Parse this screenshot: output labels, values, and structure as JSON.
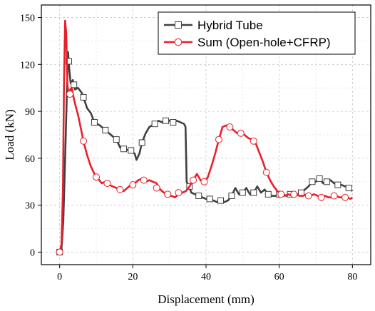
{
  "chart_data": {
    "type": "line",
    "title": "",
    "xlabel": "Displacement (mm)",
    "ylabel": "Load (kN)",
    "xlim": [
      -5,
      85
    ],
    "ylim": [
      -8,
      158
    ],
    "xticks": [
      0,
      20,
      40,
      60,
      80
    ],
    "yticks": [
      0,
      30,
      60,
      90,
      120,
      150
    ],
    "grid": true,
    "legend_position": "top-right",
    "series": [
      {
        "name": "Hybrid Tube",
        "color": "#404040",
        "marker": "square",
        "points": [
          [
            0,
            0
          ],
          [
            0.5,
            2
          ],
          [
            1.0,
            20
          ],
          [
            1.5,
            60
          ],
          [
            1.9,
            95
          ],
          [
            2.3,
            128
          ],
          [
            2.6,
            118
          ],
          [
            3.0,
            108
          ],
          [
            3.6,
            110
          ],
          [
            4.2,
            104
          ],
          [
            5.0,
            105
          ],
          [
            6,
            102
          ],
          [
            6.5,
            99
          ],
          [
            7.5,
            92
          ],
          [
            8.5,
            89
          ],
          [
            9.5,
            83
          ],
          [
            11,
            81
          ],
          [
            12.5,
            78
          ],
          [
            14,
            75
          ],
          [
            15.5,
            72
          ],
          [
            16.5,
            67
          ],
          [
            17.5,
            66
          ],
          [
            19,
            65
          ],
          [
            20.5,
            63
          ],
          [
            21,
            59
          ],
          [
            21.8,
            63
          ],
          [
            22.5,
            70
          ],
          [
            23.5,
            76
          ],
          [
            24.5,
            80
          ],
          [
            26,
            82
          ],
          [
            27,
            84
          ],
          [
            28,
            83
          ],
          [
            29,
            85
          ],
          [
            30,
            84
          ],
          [
            31,
            83
          ],
          [
            32,
            84
          ],
          [
            33,
            83
          ],
          [
            34,
            82
          ],
          [
            34.4,
            80
          ],
          [
            34.7,
            45
          ],
          [
            35.3,
            42
          ],
          [
            36,
            38
          ],
          [
            37,
            37
          ],
          [
            38,
            36
          ],
          [
            39,
            35
          ],
          [
            40,
            34
          ],
          [
            41,
            34
          ],
          [
            42,
            33
          ],
          [
            43,
            32
          ],
          [
            44,
            33
          ],
          [
            45,
            32
          ],
          [
            46,
            33
          ],
          [
            47,
            36
          ],
          [
            48,
            41
          ],
          [
            49,
            37
          ],
          [
            50,
            38
          ],
          [
            51,
            41
          ],
          [
            52,
            37
          ],
          [
            53,
            38
          ],
          [
            54,
            42
          ],
          [
            55,
            38
          ],
          [
            56,
            40
          ],
          [
            57,
            37
          ],
          [
            58,
            36
          ],
          [
            59,
            36
          ],
          [
            60,
            37
          ],
          [
            61,
            37
          ],
          [
            62,
            36
          ],
          [
            63,
            37
          ],
          [
            64,
            36
          ],
          [
            65,
            37
          ],
          [
            66,
            38
          ],
          [
            67,
            40
          ],
          [
            68,
            42
          ],
          [
            69,
            45
          ],
          [
            70,
            45
          ],
          [
            71,
            47
          ],
          [
            72,
            44
          ],
          [
            73,
            45
          ],
          [
            74,
            46
          ],
          [
            75,
            44
          ],
          [
            76,
            43
          ],
          [
            77,
            43
          ],
          [
            78,
            42
          ],
          [
            79,
            41
          ],
          [
            80,
            39
          ]
        ],
        "markers": [
          [
            0,
            0
          ],
          [
            2.5,
            122
          ],
          [
            3.9,
            107
          ],
          [
            6.5,
            99
          ],
          [
            9.5,
            83
          ],
          [
            12.5,
            78
          ],
          [
            15.5,
            72
          ],
          [
            17.5,
            66
          ],
          [
            19.5,
            65
          ],
          [
            22.5,
            70
          ],
          [
            26,
            82
          ],
          [
            29,
            84
          ],
          [
            31,
            83
          ],
          [
            35.5,
            42
          ],
          [
            38,
            36
          ],
          [
            41,
            34
          ],
          [
            44,
            33
          ],
          [
            47,
            36
          ],
          [
            50,
            38
          ],
          [
            53,
            38
          ],
          [
            57,
            37
          ],
          [
            60,
            37
          ],
          [
            63,
            37
          ],
          [
            66,
            38
          ],
          [
            69,
            45
          ],
          [
            71,
            47
          ],
          [
            73,
            45
          ],
          [
            76,
            43
          ],
          [
            79,
            41
          ]
        ]
      },
      {
        "name": "Sum (Open-hole+CFRP)",
        "color": "#e8202a",
        "marker": "circle",
        "points": [
          [
            0,
            0
          ],
          [
            0.5,
            5
          ],
          [
            0.9,
            40
          ],
          [
            1.2,
            110
          ],
          [
            1.5,
            148
          ],
          [
            1.8,
            140
          ],
          [
            2.1,
            108
          ],
          [
            2.5,
            100
          ],
          [
            2.9,
            104
          ],
          [
            3.3,
            105
          ],
          [
            3.7,
            100
          ],
          [
            4.3,
            94
          ],
          [
            5,
            88
          ],
          [
            5.8,
            79
          ],
          [
            6.5,
            71
          ],
          [
            7.5,
            62
          ],
          [
            8.5,
            55
          ],
          [
            9.5,
            50
          ],
          [
            10.5,
            47
          ],
          [
            11.5,
            44
          ],
          [
            12.5,
            45
          ],
          [
            13.5,
            43
          ],
          [
            14.5,
            42
          ],
          [
            15.5,
            41
          ],
          [
            16.5,
            40
          ],
          [
            17.5,
            39
          ],
          [
            18.5,
            41
          ],
          [
            19.5,
            43
          ],
          [
            20.5,
            44
          ],
          [
            21.5,
            46
          ],
          [
            22.5,
            47
          ],
          [
            23.5,
            45
          ],
          [
            24.5,
            46
          ],
          [
            25.5,
            45
          ],
          [
            26.5,
            44
          ],
          [
            27.5,
            40
          ],
          [
            28.5,
            38
          ],
          [
            29.5,
            37
          ],
          [
            30.5,
            36
          ],
          [
            31.5,
            35
          ],
          [
            32.5,
            37
          ],
          [
            33.5,
            38
          ],
          [
            34.5,
            39
          ],
          [
            35.5,
            42
          ],
          [
            36.5,
            46
          ],
          [
            37.5,
            50
          ],
          [
            38.5,
            46
          ],
          [
            39.5,
            44
          ],
          [
            40.5,
            48
          ],
          [
            41.5,
            55
          ],
          [
            42.5,
            63
          ],
          [
            43.5,
            72
          ],
          [
            44.5,
            80
          ],
          [
            45.5,
            81
          ],
          [
            46.5,
            80
          ],
          [
            47.5,
            78
          ],
          [
            48.5,
            76
          ],
          [
            49.5,
            77
          ],
          [
            50.5,
            75
          ],
          [
            51.5,
            73
          ],
          [
            52.5,
            72
          ],
          [
            53.5,
            70
          ],
          [
            54.5,
            64
          ],
          [
            55.5,
            58
          ],
          [
            56.5,
            51
          ],
          [
            57.5,
            46
          ],
          [
            58.5,
            42
          ],
          [
            59.5,
            39
          ],
          [
            60.5,
            37
          ],
          [
            61.5,
            36
          ],
          [
            62.5,
            37
          ],
          [
            63.5,
            36
          ],
          [
            64.5,
            37
          ],
          [
            65.5,
            36
          ],
          [
            66.5,
            36
          ],
          [
            67.5,
            37
          ],
          [
            68.5,
            36
          ],
          [
            69.5,
            37
          ],
          [
            70.5,
            36
          ],
          [
            71.5,
            35
          ],
          [
            72.5,
            36
          ],
          [
            73.5,
            35
          ],
          [
            74.5,
            35
          ],
          [
            75.5,
            36
          ],
          [
            76.5,
            35
          ],
          [
            77.5,
            35
          ],
          [
            78.5,
            35
          ],
          [
            79.5,
            34
          ],
          [
            80,
            35
          ]
        ],
        "markers": [
          [
            0,
            0
          ],
          [
            2.8,
            101
          ],
          [
            6.5,
            71
          ],
          [
            10,
            48
          ],
          [
            13,
            44
          ],
          [
            16.5,
            40
          ],
          [
            20,
            43
          ],
          [
            23,
            46
          ],
          [
            26.5,
            41
          ],
          [
            29.5,
            37
          ],
          [
            32.5,
            38
          ],
          [
            36.5,
            46
          ],
          [
            39.5,
            45
          ],
          [
            43.5,
            72
          ],
          [
            46.5,
            80
          ],
          [
            49.5,
            76
          ],
          [
            53,
            71
          ],
          [
            56.5,
            51
          ],
          [
            60.5,
            37
          ],
          [
            64,
            37
          ],
          [
            68,
            36
          ],
          [
            71.5,
            35
          ],
          [
            75,
            36
          ],
          [
            78,
            35
          ]
        ]
      }
    ]
  }
}
